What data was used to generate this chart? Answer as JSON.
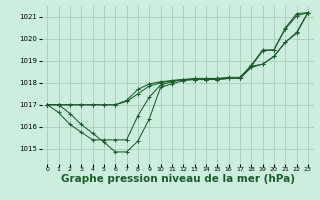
{
  "background_color": "#cceedd",
  "grid_color": "#aaccbb",
  "line_color": "#1a5c2a",
  "xlabel": "Graphe pression niveau de la mer (hPa)",
  "xlabel_fontsize": 7.5,
  "xlim": [
    -0.5,
    23.5
  ],
  "ylim": [
    1014.3,
    1021.5
  ],
  "yticks": [
    1015,
    1016,
    1017,
    1018,
    1019,
    1020,
    1021
  ],
  "xticks": [
    0,
    1,
    2,
    3,
    4,
    5,
    6,
    7,
    8,
    9,
    10,
    11,
    12,
    13,
    14,
    15,
    16,
    17,
    18,
    19,
    20,
    21,
    22,
    23
  ],
  "series": [
    [
      1017.0,
      1017.0,
      1016.6,
      1016.1,
      1015.7,
      1015.3,
      1014.85,
      1014.85,
      1015.35,
      1016.35,
      1017.8,
      1017.95,
      1018.1,
      1018.15,
      1018.15,
      1018.15,
      1018.2,
      1018.2,
      1018.75,
      1019.45,
      1019.5,
      1020.45,
      1021.05,
      1021.2
    ],
    [
      1017.0,
      1016.65,
      1016.1,
      1015.75,
      1015.4,
      1015.4,
      1015.4,
      1015.4,
      1016.5,
      1017.35,
      1017.9,
      1018.05,
      1018.15,
      1018.2,
      1018.2,
      1018.2,
      1018.25,
      1018.25,
      1018.8,
      1019.5,
      1019.5,
      1020.5,
      1021.15,
      1021.2
    ],
    [
      1017.0,
      1017.0,
      1017.0,
      1017.0,
      1017.0,
      1017.0,
      1017.0,
      1017.15,
      1017.5,
      1017.85,
      1018.0,
      1018.1,
      1018.15,
      1018.15,
      1018.15,
      1018.15,
      1018.2,
      1018.2,
      1018.7,
      1018.85,
      1019.2,
      1019.85,
      1020.25,
      1021.2
    ],
    [
      1017.0,
      1017.0,
      1017.0,
      1017.0,
      1017.0,
      1017.0,
      1017.0,
      1017.2,
      1017.7,
      1017.95,
      1018.05,
      1018.1,
      1018.15,
      1018.15,
      1018.15,
      1018.2,
      1018.2,
      1018.2,
      1018.75,
      1018.85,
      1019.2,
      1019.85,
      1020.3,
      1021.2
    ]
  ]
}
